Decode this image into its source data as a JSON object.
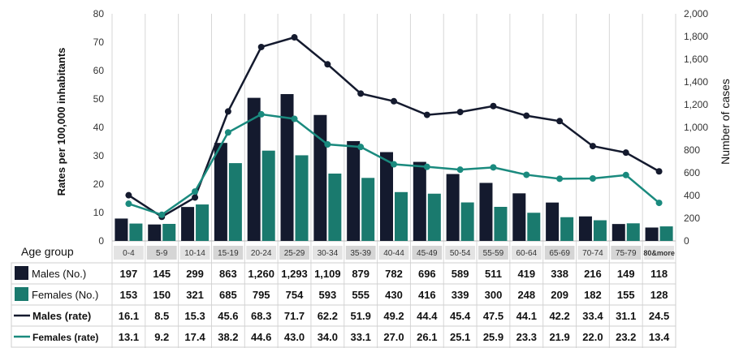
{
  "chart_data": {
    "type": "bar",
    "ylabel_left": "Rates per 100,000 inhabitants",
    "ylabel_right": "Number of cases",
    "left_axis": {
      "min": 0,
      "max": 80,
      "ticks": [
        "0",
        "10",
        "20",
        "30",
        "40",
        "50",
        "60",
        "70",
        "80"
      ]
    },
    "right_axis": {
      "min": 0,
      "max": 2000,
      "ticks": [
        "0",
        "200",
        "400",
        "600",
        "800",
        "1,000",
        "1,200",
        "1,400",
        "1,600",
        "1,800",
        "2,000"
      ]
    },
    "categories_label": "Age group",
    "categories": [
      "0-4",
      "5-9",
      "10-14",
      "15-19",
      "20-24",
      "25-29",
      "30-34",
      "35-39",
      "40-44",
      "45-49",
      "50-54",
      "55-59",
      "60-64",
      "65-69",
      "70-74",
      "75-79",
      "80&more"
    ],
    "series": [
      {
        "name": "Males (No.)",
        "type": "bar",
        "axis": "right",
        "color": "#141a2e",
        "values": [
          197,
          145,
          299,
          863,
          1260,
          1293,
          1109,
          879,
          782,
          696,
          589,
          511,
          419,
          338,
          216,
          149,
          118
        ],
        "labels": [
          "197",
          "145",
          "299",
          "863",
          "1,260",
          "1,293",
          "1,109",
          "879",
          "782",
          "696",
          "589",
          "511",
          "419",
          "338",
          "216",
          "149",
          "118"
        ]
      },
      {
        "name": "Females (No.)",
        "type": "bar",
        "axis": "right",
        "color": "#1a7a6e",
        "values": [
          153,
          150,
          321,
          685,
          795,
          754,
          593,
          555,
          430,
          416,
          339,
          300,
          248,
          209,
          182,
          155,
          128
        ],
        "labels": [
          "153",
          "150",
          "321",
          "685",
          "795",
          "754",
          "593",
          "555",
          "430",
          "416",
          "339",
          "300",
          "248",
          "209",
          "182",
          "155",
          "128"
        ]
      },
      {
        "name": "Males (rate)",
        "type": "line",
        "axis": "left",
        "color": "#141a2e",
        "values": [
          16.1,
          8.5,
          15.3,
          45.6,
          68.3,
          71.7,
          62.2,
          51.9,
          49.2,
          44.4,
          45.4,
          47.5,
          44.1,
          42.2,
          33.4,
          31.1,
          24.5
        ],
        "labels": [
          "16.1",
          "8.5",
          "15.3",
          "45.6",
          "68.3",
          "71.7",
          "62.2",
          "51.9",
          "49.2",
          "44.4",
          "45.4",
          "47.5",
          "44.1",
          "42.2",
          "33.4",
          "31.1",
          "24.5"
        ]
      },
      {
        "name": "Females (rate)",
        "type": "line",
        "axis": "left",
        "color": "#1a8a7e",
        "values": [
          13.1,
          9.2,
          17.4,
          38.2,
          44.6,
          43.0,
          34.0,
          33.1,
          27.0,
          26.1,
          25.1,
          25.9,
          23.3,
          21.9,
          22.0,
          23.2,
          13.4
        ],
        "labels": [
          "13.1",
          "9.2",
          "17.4",
          "38.2",
          "44.6",
          "43.0",
          "34.0",
          "33.1",
          "27.0",
          "26.1",
          "25.1",
          "25.9",
          "23.3",
          "21.9",
          "22.0",
          "23.2",
          "13.4"
        ]
      }
    ],
    "grid": "vertical"
  }
}
